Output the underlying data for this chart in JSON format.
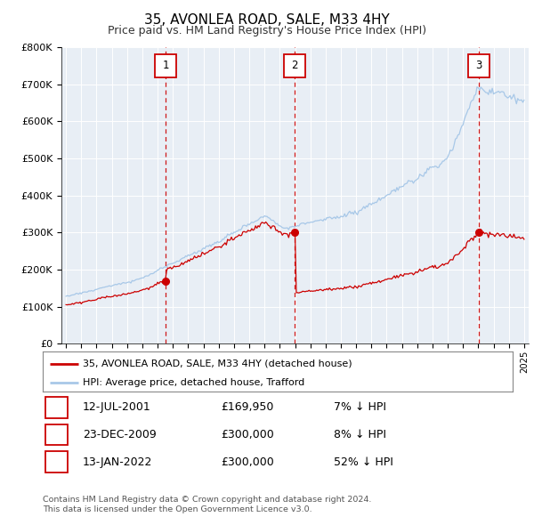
{
  "title": "35, AVONLEA ROAD, SALE, M33 4HY",
  "subtitle": "Price paid vs. HM Land Registry's House Price Index (HPI)",
  "ylim": [
    0,
    800000
  ],
  "yticks": [
    0,
    100000,
    200000,
    300000,
    400000,
    500000,
    600000,
    700000,
    800000
  ],
  "ytick_labels": [
    "£0",
    "£100K",
    "£200K",
    "£300K",
    "£400K",
    "£500K",
    "£600K",
    "£700K",
    "£800K"
  ],
  "hpi_color": "#a8c8e8",
  "price_color": "#cc0000",
  "plot_bg": "#e8eef5",
  "sale_dates_num": [
    2001.53,
    2009.98,
    2022.04
  ],
  "sale_prices": [
    169950,
    300000,
    300000
  ],
  "sale_labels": [
    "1",
    "2",
    "3"
  ],
  "legend_label_red": "35, AVONLEA ROAD, SALE, M33 4HY (detached house)",
  "legend_label_blue": "HPI: Average price, detached house, Trafford",
  "table_rows": [
    [
      "1",
      "12-JUL-2001",
      "£169,950",
      "7% ↓ HPI"
    ],
    [
      "2",
      "23-DEC-2009",
      "£300,000",
      "8% ↓ HPI"
    ],
    [
      "3",
      "13-JAN-2022",
      "£300,000",
      "52% ↓ HPI"
    ]
  ],
  "footer1": "Contains HM Land Registry data © Crown copyright and database right 2024.",
  "footer2": "This data is licensed under the Open Government Licence v3.0."
}
